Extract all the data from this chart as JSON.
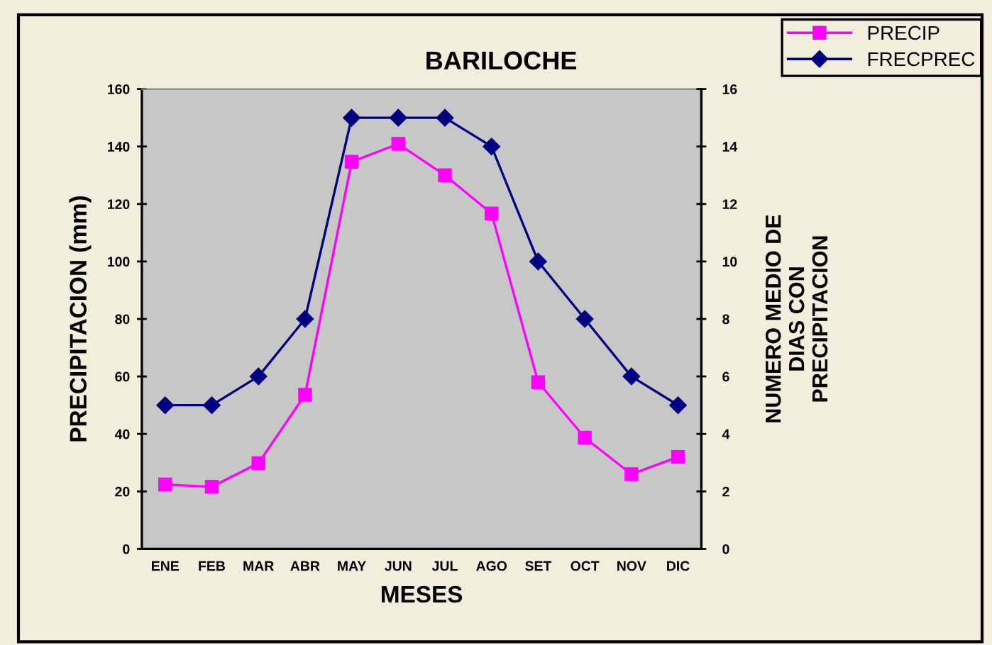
{
  "chart_data": {
    "type": "line",
    "title": "BARILOCHE",
    "xlabel": "MESES",
    "ylabel": "PRECIPITACION (mm)",
    "y2label": "NUMERO MEDIO DE\nDIAS CON\nPRECIPITACION",
    "categories": [
      "ENE",
      "FEB",
      "MAR",
      "ABR",
      "MAY",
      "JUN",
      "JUL",
      "AGO",
      "SET",
      "OCT",
      "NOV",
      "DIC"
    ],
    "series": [
      {
        "name": "PRECIP",
        "color": "#ff00ff",
        "marker": "square",
        "values": [
          22.4,
          21.6,
          29.8,
          53.6,
          134.7,
          140.9,
          130,
          116.7,
          58,
          38.7,
          26,
          32
        ]
      },
      {
        "name": "FRECPREC",
        "color": "#000080",
        "marker": "diamond",
        "axis": "y2",
        "values": [
          5,
          5,
          6,
          8,
          15,
          15,
          15,
          14,
          10,
          8,
          6,
          5
        ]
      }
    ],
    "ylim": [
      0,
      160
    ],
    "yticks": [
      0,
      20,
      40,
      60,
      80,
      100,
      120,
      140,
      160
    ],
    "y2lim": [
      0,
      16
    ],
    "y2ticks": [
      0,
      2,
      4,
      6,
      8,
      10,
      12,
      14,
      16
    ],
    "grid": false,
    "legend": "top right"
  }
}
